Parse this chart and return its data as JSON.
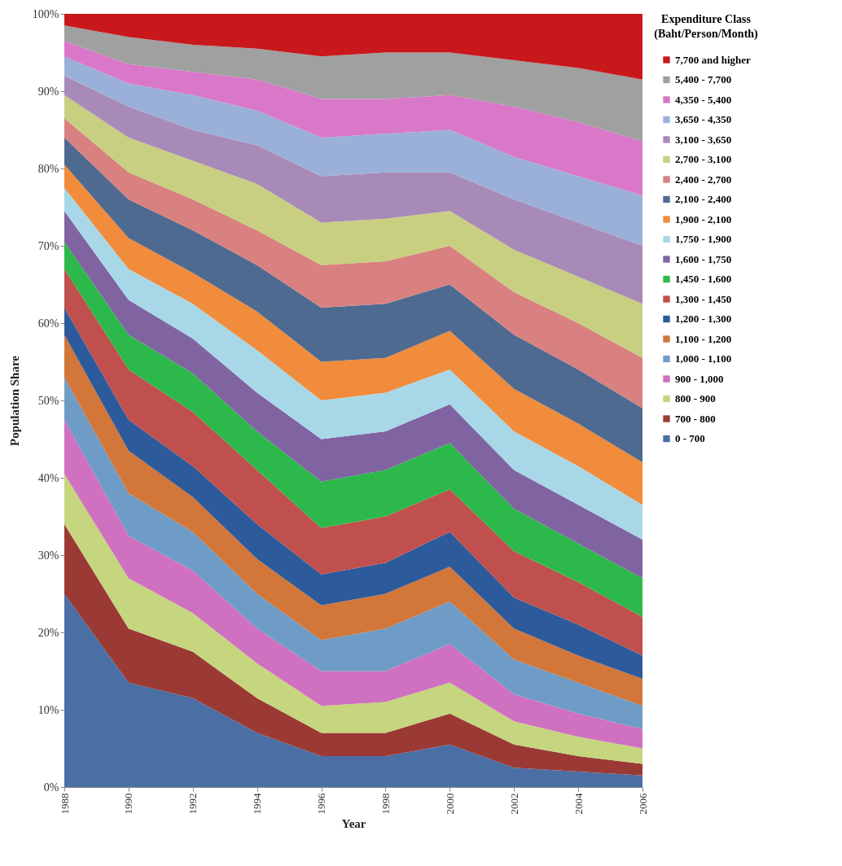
{
  "chart_data": {
    "type": "area",
    "stacked": true,
    "xlabel": "Year",
    "ylabel": "Population Share",
    "legend_title": "Expenditure Class (Baht/Person/Month)",
    "legend": "right",
    "grid": false,
    "x": [
      1988,
      1990,
      1992,
      1994,
      1996,
      1998,
      2000,
      2002,
      2004,
      2006
    ],
    "xlim": [
      1988,
      2006
    ],
    "xticks": [
      1988,
      1990,
      1992,
      1994,
      1996,
      1998,
      2000,
      2002,
      2004,
      2006
    ],
    "ylim": [
      0,
      100
    ],
    "yticks": [
      {
        "value": 0,
        "label": "0%"
      },
      {
        "value": 10,
        "label": "10%"
      },
      {
        "value": 20,
        "label": "20%"
      },
      {
        "value": 30,
        "label": "30%"
      },
      {
        "value": 40,
        "label": "40%"
      },
      {
        "value": 50,
        "label": "50%"
      },
      {
        "value": 60,
        "label": "60%"
      },
      {
        "value": 70,
        "label": "70%"
      },
      {
        "value": 80,
        "label": "80%"
      },
      {
        "value": 90,
        "label": "90%"
      },
      {
        "value": 100,
        "label": "100%"
      }
    ],
    "series": [
      {
        "name": "0 - 700",
        "color": "#4a6fa5",
        "values": [
          25,
          13.5,
          11.5,
          7,
          4,
          4,
          5.5,
          2.5,
          2,
          1.5
        ]
      },
      {
        "name": "700 - 800",
        "color": "#9b3a35",
        "values": [
          9,
          7,
          6,
          4.5,
          3,
          3,
          4,
          3,
          2,
          1.5
        ]
      },
      {
        "name": "800 - 900",
        "color": "#c5d67f",
        "values": [
          6.5,
          6.5,
          5,
          4.5,
          3.5,
          4,
          4,
          3,
          2.5,
          2
        ]
      },
      {
        "name": "900 - 1,000",
        "color": "#d070c0",
        "values": [
          7,
          5.5,
          5.5,
          4.5,
          4.5,
          4,
          5,
          3.5,
          3,
          2.5
        ]
      },
      {
        "name": "1,000 - 1,100",
        "color": "#6f9cc6",
        "values": [
          5.5,
          5.5,
          5,
          4.5,
          4,
          5.5,
          5.5,
          4.5,
          4,
          3
        ]
      },
      {
        "name": "1,100 - 1,200",
        "color": "#d2763a",
        "values": [
          5.5,
          5.5,
          4.5,
          4.5,
          4.5,
          4.5,
          4.5,
          4,
          3.5,
          3.5
        ]
      },
      {
        "name": "1,200 - 1,300",
        "color": "#2d5a9b",
        "values": [
          3.5,
          4,
          4,
          4.5,
          4,
          4,
          4.5,
          4,
          4,
          3
        ]
      },
      {
        "name": "1,300 - 1,450",
        "color": "#c0504d",
        "values": [
          5,
          6.5,
          7,
          7,
          6,
          6,
          5.5,
          6,
          5.5,
          5
        ]
      },
      {
        "name": "1,450 - 1,600",
        "color": "#2db84b",
        "values": [
          3.5,
          4.5,
          5,
          5,
          6,
          6,
          6,
          5.5,
          5,
          5
        ]
      },
      {
        "name": "1,600 - 1,750",
        "color": "#8064a2",
        "values": [
          4,
          4.5,
          4.5,
          5,
          5.5,
          5,
          5,
          5,
          5,
          5
        ]
      },
      {
        "name": "1,750 - 1,900",
        "color": "#a8d8e8",
        "values": [
          3,
          4,
          4.5,
          5.5,
          5,
          5,
          4.5,
          5,
          5,
          4.5
        ]
      },
      {
        "name": "1,900 - 2,100",
        "color": "#f08c3c",
        "values": [
          3,
          4,
          4,
          5,
          5,
          4.5,
          5,
          5.5,
          5.5,
          5.5
        ]
      },
      {
        "name": "2,100 - 2,400",
        "color": "#4f6a90",
        "values": [
          3.5,
          5,
          5.5,
          6,
          7,
          7,
          6,
          7,
          7,
          7
        ]
      },
      {
        "name": "2,400 - 2,700",
        "color": "#d98080",
        "values": [
          2.5,
          3.5,
          4,
          4.5,
          5.5,
          5.5,
          5,
          5.5,
          6,
          6.5
        ]
      },
      {
        "name": "2,700 - 3,100",
        "color": "#c8cf80",
        "values": [
          3,
          4.5,
          5,
          6,
          5.5,
          5.5,
          4.5,
          5.5,
          6,
          7
        ]
      },
      {
        "name": "3,100 - 3,650",
        "color": "#a88ab8",
        "values": [
          2.5,
          4,
          4,
          5,
          6,
          6,
          5,
          6.5,
          7,
          7.5
        ]
      },
      {
        "name": "3,650 - 4,350",
        "color": "#9ab0d8",
        "values": [
          2.5,
          3,
          4.5,
          4.5,
          5,
          5,
          5.5,
          5.5,
          6,
          6.5
        ]
      },
      {
        "name": "4,350 - 5,400",
        "color": "#d977c8",
        "values": [
          2,
          2.5,
          3,
          4,
          5,
          4.5,
          4.5,
          6.5,
          7,
          7
        ]
      },
      {
        "name": "5,400 - 7,700",
        "color": "#a0a0a0",
        "values": [
          2,
          3.5,
          3.5,
          4,
          5.5,
          6,
          5.5,
          6,
          7,
          8
        ]
      },
      {
        "name": "7,700 and higher",
        "color": "#c8181c",
        "values": [
          1.5,
          3,
          4,
          4.5,
          5.5,
          5,
          5,
          6,
          7,
          8.5
        ]
      }
    ]
  }
}
